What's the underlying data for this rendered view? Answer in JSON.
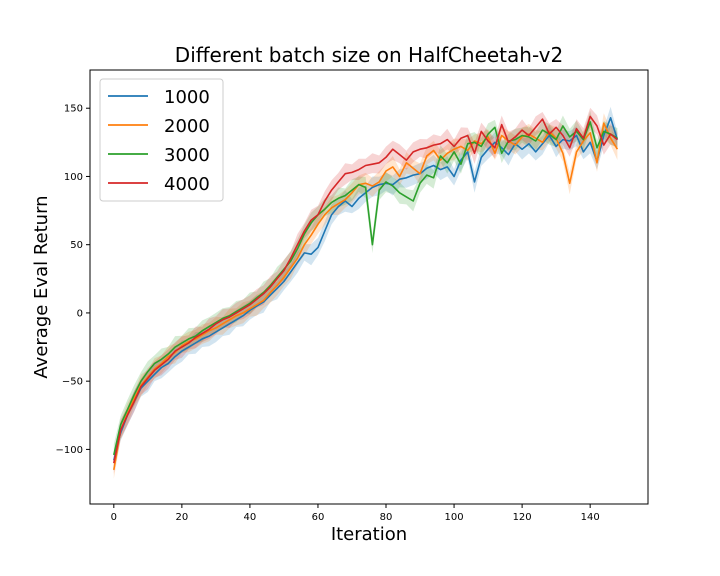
{
  "chart_data": {
    "type": "line",
    "title": "Different batch size on HalfCheetah-v2",
    "xlabel": "Iteration",
    "ylabel": "Average Eval Return",
    "xlim": [
      -7,
      157
    ],
    "ylim": [
      -140,
      178
    ],
    "xticks": [
      0,
      20,
      40,
      60,
      80,
      100,
      120,
      140
    ],
    "yticks": [
      -100,
      -50,
      0,
      50,
      100,
      150
    ],
    "grid": false,
    "legend_position": "upper-left",
    "band_spread": 8,
    "series": [
      {
        "name": "1000",
        "color": "#1f77b4",
        "x": [
          0,
          2,
          4,
          6,
          8,
          10,
          12,
          14,
          16,
          18,
          20,
          22,
          24,
          26,
          28,
          30,
          32,
          34,
          36,
          38,
          40,
          42,
          44,
          46,
          48,
          50,
          52,
          54,
          56,
          58,
          60,
          62,
          64,
          66,
          68,
          70,
          72,
          74,
          76,
          78,
          80,
          82,
          84,
          86,
          88,
          90,
          92,
          94,
          96,
          98,
          100,
          102,
          104,
          106,
          108,
          110,
          112,
          114,
          116,
          118,
          120,
          122,
          124,
          126,
          128,
          130,
          132,
          134,
          136,
          138,
          140,
          142,
          144,
          146,
          148
        ],
        "y": [
          -108,
          -88,
          -75,
          -65,
          -55,
          -50,
          -45,
          -40,
          -37,
          -32,
          -28,
          -25,
          -22,
          -19,
          -17,
          -14,
          -11,
          -8,
          -5,
          -2,
          2,
          5,
          8,
          13,
          18,
          23,
          30,
          37,
          44,
          43,
          48,
          60,
          72,
          78,
          82,
          78,
          84,
          88,
          92,
          94,
          95,
          94,
          98,
          99,
          101,
          102,
          106,
          108,
          105,
          107,
          100,
          112,
          118,
          96,
          114,
          120,
          125,
          121,
          116,
          124,
          120,
          124,
          118,
          124,
          130,
          122,
          127,
          126,
          130,
          118,
          125,
          111,
          130,
          143,
          127
        ]
      },
      {
        "name": "2000",
        "color": "#ff7f0e",
        "x": [
          0,
          2,
          4,
          6,
          8,
          10,
          12,
          14,
          16,
          18,
          20,
          22,
          24,
          26,
          28,
          30,
          32,
          34,
          36,
          38,
          40,
          42,
          44,
          46,
          48,
          50,
          52,
          54,
          56,
          58,
          60,
          62,
          64,
          66,
          68,
          70,
          72,
          74,
          76,
          78,
          80,
          82,
          84,
          86,
          88,
          90,
          92,
          94,
          96,
          98,
          100,
          102,
          104,
          106,
          108,
          110,
          112,
          114,
          116,
          118,
          120,
          122,
          124,
          126,
          128,
          130,
          132,
          134,
          136,
          138,
          140,
          142,
          144,
          146,
          148
        ],
        "y": [
          -115,
          -86,
          -74,
          -63,
          -53,
          -47,
          -41,
          -37,
          -32,
          -29,
          -24,
          -21,
          -19,
          -16,
          -13,
          -11,
          -8,
          -5,
          -2,
          0,
          3,
          6,
          9,
          15,
          20,
          26,
          33,
          40,
          50,
          57,
          65,
          72,
          77,
          80,
          83,
          88,
          94,
          95,
          93,
          96,
          104,
          107,
          100,
          110,
          106,
          102,
          115,
          119,
          112,
          117,
          120,
          122,
          119,
          126,
          124,
          129,
          117,
          130,
          126,
          123,
          129,
          131,
          128,
          125,
          133,
          128,
          117,
          95,
          118,
          126,
          132,
          110,
          139,
          128,
          120
        ]
      },
      {
        "name": "3000",
        "color": "#2ca02c",
        "x": [
          0,
          2,
          4,
          6,
          8,
          10,
          12,
          14,
          16,
          18,
          20,
          22,
          24,
          26,
          28,
          30,
          32,
          34,
          36,
          38,
          40,
          42,
          44,
          46,
          48,
          50,
          52,
          54,
          56,
          58,
          60,
          62,
          64,
          66,
          68,
          70,
          72,
          74,
          76,
          78,
          80,
          82,
          84,
          86,
          88,
          90,
          92,
          94,
          96,
          98,
          100,
          102,
          104,
          106,
          108,
          110,
          112,
          114,
          116,
          118,
          120,
          122,
          124,
          126,
          128,
          130,
          132,
          134,
          136,
          138,
          140,
          142,
          144,
          146,
          148
        ],
        "y": [
          -104,
          -82,
          -71,
          -60,
          -50,
          -43,
          -37,
          -34,
          -30,
          -25,
          -22,
          -19,
          -17,
          -13,
          -10,
          -7,
          -4,
          -2,
          1,
          4,
          7,
          11,
          15,
          20,
          26,
          32,
          38,
          47,
          58,
          66,
          72,
          76,
          81,
          84,
          86,
          90,
          94,
          92,
          50,
          90,
          96,
          93,
          88,
          85,
          82,
          95,
          101,
          99,
          115,
          110,
          118,
          109,
          124,
          125,
          122,
          131,
          136,
          117,
          126,
          127,
          130,
          129,
          126,
          134,
          131,
          127,
          137,
          129,
          133,
          127,
          140,
          121,
          133,
          131,
          128
        ]
      },
      {
        "name": "4000",
        "color": "#d62728",
        "x": [
          0,
          2,
          4,
          6,
          8,
          10,
          12,
          14,
          16,
          18,
          20,
          22,
          24,
          26,
          28,
          30,
          32,
          34,
          36,
          38,
          40,
          42,
          44,
          46,
          48,
          50,
          52,
          54,
          56,
          58,
          60,
          62,
          64,
          66,
          68,
          70,
          72,
          74,
          76,
          78,
          80,
          82,
          84,
          86,
          88,
          90,
          92,
          94,
          96,
          98,
          100,
          102,
          104,
          106,
          108,
          110,
          112,
          114,
          116,
          118,
          120,
          122,
          124,
          126,
          128,
          130,
          132,
          134,
          136,
          138,
          140,
          142,
          144,
          146,
          148
        ],
        "y": [
          -110,
          -86,
          -75,
          -65,
          -54,
          -48,
          -42,
          -38,
          -34,
          -28,
          -25,
          -22,
          -18,
          -15,
          -12,
          -8,
          -5,
          -3,
          0,
          3,
          6,
          10,
          14,
          19,
          25,
          31,
          40,
          50,
          60,
          68,
          72,
          82,
          90,
          96,
          102,
          103,
          105,
          108,
          109,
          110,
          114,
          120,
          116,
          112,
          118,
          120,
          121,
          123,
          124,
          127,
          122,
          128,
          130,
          117,
          133,
          126,
          121,
          138,
          125,
          129,
          134,
          130,
          136,
          142,
          131,
          136,
          130,
          121,
          135,
          128,
          144,
          137,
          123,
          131,
          127
        ]
      }
    ]
  }
}
